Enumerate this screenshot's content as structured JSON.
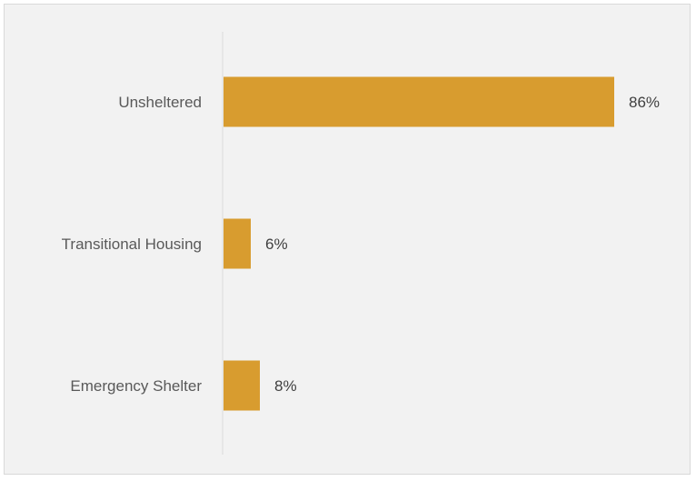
{
  "chart_data": {
    "type": "bar",
    "orientation": "horizontal",
    "categories": [
      "Unsheltered",
      "Transitional Housing",
      "Emergency Shelter"
    ],
    "values": [
      86,
      6,
      8
    ],
    "value_labels": [
      "86%",
      "6%",
      "8%"
    ],
    "xlim": [
      0,
      100
    ],
    "grid": false,
    "legend": "none",
    "colors": {
      "bar": "#d89c2f",
      "background": "#f2f2f2",
      "axis": "#d9d9d9"
    }
  }
}
